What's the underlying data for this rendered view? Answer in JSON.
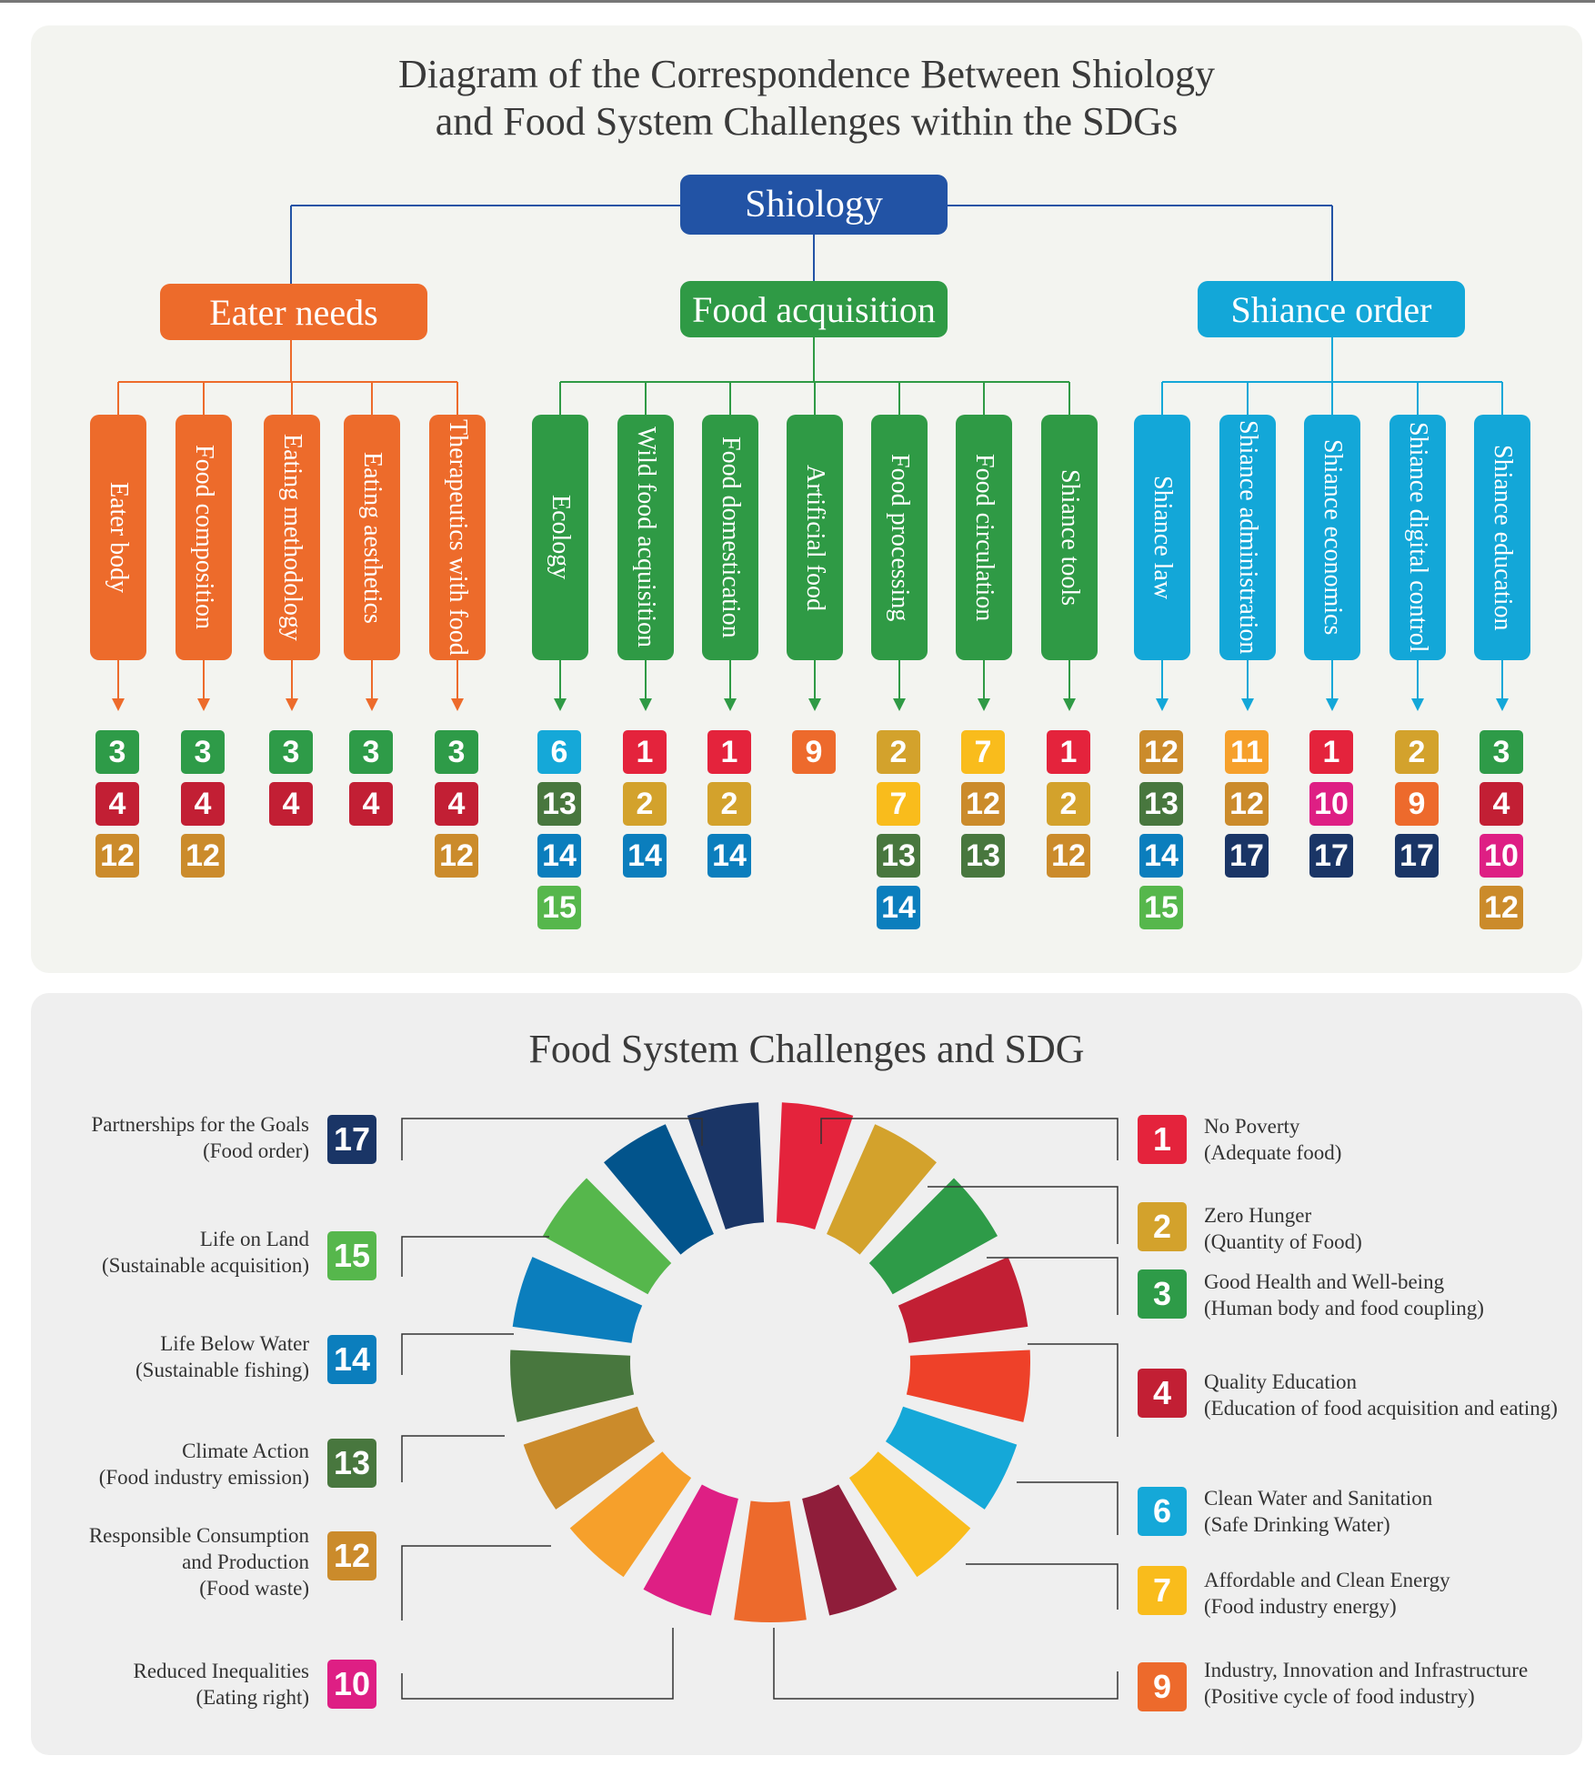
{
  "titles": {
    "top": [
      "Diagram of the Correspondence Between Shiology",
      "and Food System Challenges within the SDGs"
    ],
    "bottom": "Food System Challenges and SDG"
  },
  "colors": {
    "root": "#2253a5",
    "eater": "#ed6b2b",
    "food": "#2f9a45",
    "shiance": "#13a7d8",
    "sdg": {
      "1": "#e4233c",
      "2": "#d3a22c",
      "3": "#2e9b48",
      "4": "#c21f34",
      "5": "#ee4129",
      "6": "#15a8d8",
      "7": "#f9bc1c",
      "8": "#8f1d3a",
      "9": "#ed6a2c",
      "10": "#de1f84",
      "11": "#f6a02b",
      "12": "#cb8b2b",
      "13": "#48773e",
      "14": "#0b7ebd",
      "15": "#56b74c",
      "16": "#02548c",
      "17": "#1a3566"
    }
  },
  "root": {
    "label": "Shiology"
  },
  "categories": [
    {
      "id": "eater",
      "label": "Eater needs",
      "items": [
        {
          "label": "Eater body",
          "sdgs": [
            "3",
            "4",
            "12"
          ]
        },
        {
          "label": "Food composition",
          "sdgs": [
            "3",
            "4",
            "12"
          ]
        },
        {
          "label": "Eating methodology",
          "sdgs": [
            "3",
            "4"
          ]
        },
        {
          "label": "Eating aesthetics",
          "sdgs": [
            "3",
            "4"
          ]
        },
        {
          "label": "Therapeutics with food",
          "sdgs": [
            "3",
            "4",
            "12"
          ]
        }
      ]
    },
    {
      "id": "food",
      "label": "Food acquisition",
      "items": [
        {
          "label": "Ecology",
          "sdgs": [
            "6",
            "13",
            "14",
            "15"
          ]
        },
        {
          "label": "Wild food acquisition",
          "sdgs": [
            "1",
            "2",
            "14"
          ]
        },
        {
          "label": "Food domestication",
          "sdgs": [
            "1",
            "2",
            "14"
          ]
        },
        {
          "label": "Artificial food",
          "sdgs": [
            "9"
          ]
        },
        {
          "label": "Food processing",
          "sdgs": [
            "2",
            "7",
            "13",
            "14"
          ]
        },
        {
          "label": "Food circulation",
          "sdgs": [
            "7",
            "12",
            "13"
          ]
        },
        {
          "label": "Shiance tools",
          "sdgs": [
            "1",
            "2",
            "12"
          ]
        }
      ]
    },
    {
      "id": "shiance",
      "label": "Shiance order",
      "items": [
        {
          "label": "Shiance law",
          "sdgs": [
            "12",
            "13",
            "14",
            "15"
          ]
        },
        {
          "label": "Shiance administration",
          "sdgs": [
            "11",
            "12",
            "17"
          ]
        },
        {
          "label": "Shiance economics",
          "sdgs": [
            "1",
            "10",
            "17"
          ]
        },
        {
          "label": "Shiance digital control",
          "sdgs": [
            "2",
            "9",
            "17"
          ]
        },
        {
          "label": "Shiance education",
          "sdgs": [
            "3",
            "4",
            "10",
            "12"
          ]
        }
      ]
    }
  ],
  "legend_left": [
    {
      "sdg": "17",
      "lines": [
        "Partnerships for the Goals",
        "(Food order)"
      ]
    },
    {
      "sdg": "15",
      "lines": [
        "Life on Land",
        "(Sustainable acquisition)"
      ]
    },
    {
      "sdg": "14",
      "lines": [
        "Life Below Water",
        "(Sustainable fishing)"
      ]
    },
    {
      "sdg": "13",
      "lines": [
        "Climate Action",
        "(Food industry emission)"
      ]
    },
    {
      "sdg": "12",
      "lines": [
        "Responsible Consumption",
        "and Production",
        "(Food waste)"
      ]
    },
    {
      "sdg": "10",
      "lines": [
        "Reduced Inequalities",
        "(Eating right)"
      ]
    }
  ],
  "legend_right": [
    {
      "sdg": "1",
      "lines": [
        "No Poverty",
        "(Adequate food)"
      ]
    },
    {
      "sdg": "2",
      "lines": [
        "Zero Hunger",
        "(Quantity of Food)"
      ]
    },
    {
      "sdg": "3",
      "lines": [
        "Good Health and Well-being",
        "(Human body and food coupling)"
      ]
    },
    {
      "sdg": "4",
      "lines": [
        "Quality Education",
        "(Education of food acquisition and eating)"
      ]
    },
    {
      "sdg": "6",
      "lines": [
        "Clean Water and Sanitation",
        "(Safe Drinking Water)"
      ]
    },
    {
      "sdg": "7",
      "lines": [
        "Affordable and Clean Energy",
        "(Food industry energy)"
      ]
    },
    {
      "sdg": "9",
      "lines": [
        "Industry, Innovation and Infrastructure",
        "(Positive cycle of food industry)"
      ]
    }
  ]
}
